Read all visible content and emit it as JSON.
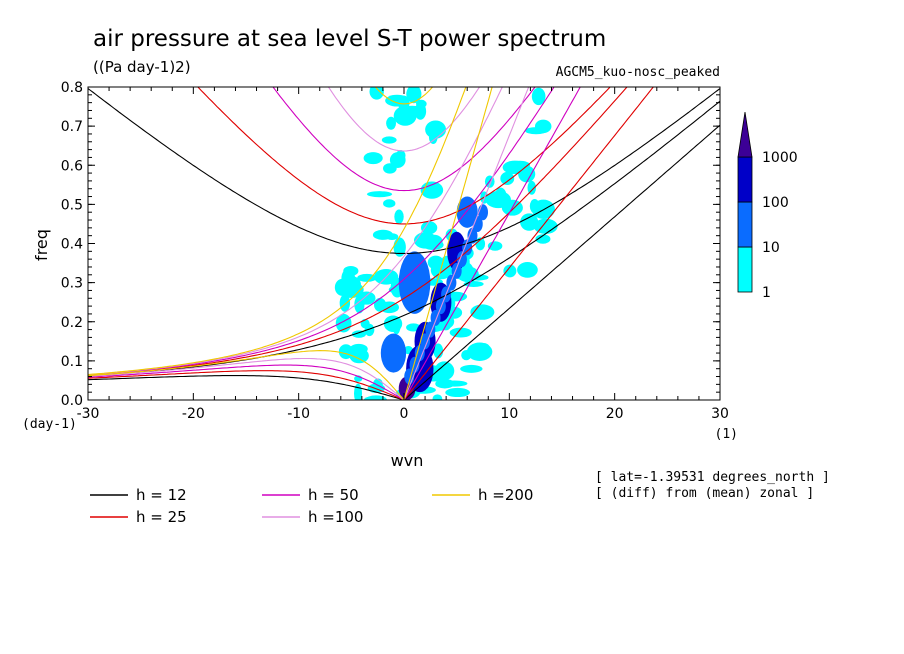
{
  "chart_data": {
    "type": "heatmap",
    "title": "air pressure at sea level S-T power spectrum",
    "units": "((Pa day-1)2)",
    "model": "AGCM5_kuo-nosc_peaked",
    "xlabel": "wvn",
    "ylabel": "freq",
    "x_unit": "(1)",
    "y_unit": "(day-1)",
    "xlim": [
      -30,
      30
    ],
    "ylim": [
      0,
      0.8
    ],
    "x_ticks": [
      -30,
      -20,
      -10,
      0,
      10,
      20,
      30
    ],
    "y_ticks": [
      0.0,
      0.1,
      0.2,
      0.3,
      0.4,
      0.5,
      0.6,
      0.7,
      0.8
    ],
    "x_tick_labels": [
      "-30",
      "-20",
      "-10",
      "0",
      "10",
      "20",
      "30"
    ],
    "y_tick_labels": [
      "0.0",
      "0.1",
      "0.2",
      "0.3",
      "0.4",
      "0.5",
      "0.6",
      "0.7",
      "0.8"
    ],
    "colorbar": {
      "levels": [
        1,
        10,
        100,
        1000
      ],
      "labels": [
        "1",
        "10",
        "100",
        "1000"
      ],
      "colors": [
        "#00ffff",
        "#0a6cff",
        "#0000c8",
        "#3c0096"
      ]
    },
    "dispersion_curves": [
      {
        "label": "h = 12",
        "h": 12,
        "color": "#000000"
      },
      {
        "label": "h = 25",
        "h": 25,
        "color": "#e00000"
      },
      {
        "label": "h = 50",
        "h": 50,
        "color": "#d000c0"
      },
      {
        "label": "h =100",
        "h": 100,
        "color": "#e090e0"
      },
      {
        "label": "h =200",
        "h": 200,
        "color": "#f0c800"
      }
    ],
    "annotations": [
      "[ lat=-1.39531 degrees_north ]",
      "[ (diff) from (mean) zonal ]"
    ],
    "spectrum_features": [
      {
        "x": 0.3,
        "y": 0.03,
        "level": 3,
        "rx": 0.8,
        "ry": 0.03
      },
      {
        "x": 1.5,
        "y": 0.08,
        "level": 2,
        "rx": 1.3,
        "ry": 0.06
      },
      {
        "x": 2.0,
        "y": 0.15,
        "level": 2,
        "rx": 1.0,
        "ry": 0.05
      },
      {
        "x": 3.5,
        "y": 0.25,
        "level": 2,
        "rx": 1.0,
        "ry": 0.05
      },
      {
        "x": 5.0,
        "y": 0.38,
        "level": 2,
        "rx": 0.9,
        "ry": 0.05
      },
      {
        "x": 6.0,
        "y": 0.48,
        "level": 1,
        "rx": 1.0,
        "ry": 0.04
      },
      {
        "x": 1.0,
        "y": 0.3,
        "level": 1,
        "rx": 1.5,
        "ry": 0.08
      },
      {
        "x": -1.0,
        "y": 0.12,
        "level": 1,
        "rx": 1.2,
        "ry": 0.05
      }
    ]
  }
}
